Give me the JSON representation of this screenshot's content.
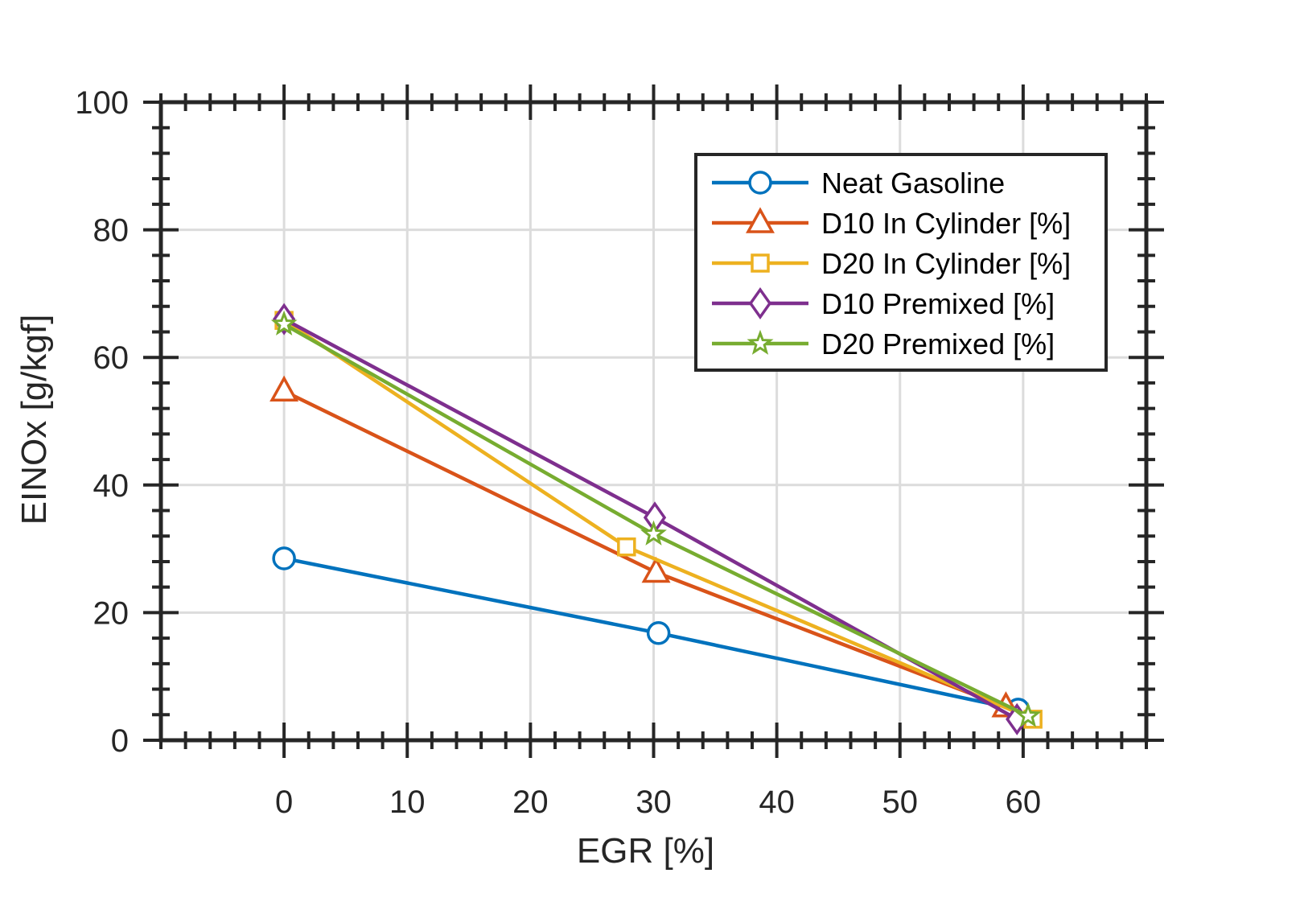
{
  "chart_data": {
    "type": "line",
    "xlabel": "EGR [%]",
    "ylabel": "EINOx [g/kgf]",
    "xlim": [
      -10,
      70
    ],
    "ylim": [
      0,
      100
    ],
    "xticks": [
      0,
      10,
      20,
      30,
      40,
      50,
      60
    ],
    "yticks": [
      0,
      20,
      40,
      60,
      80,
      100
    ],
    "grid": true,
    "legend_position": "top-right",
    "series": [
      {
        "name": "Neat Gasoline",
        "color": "#0072BD",
        "marker": "circle",
        "x": [
          0,
          30.4,
          59.6
        ],
        "y": [
          28.5,
          16.8,
          4.8
        ]
      },
      {
        "name": "D10 In Cylinder [%]",
        "color": "#D95319",
        "marker": "triangle",
        "x": [
          0,
          30.2,
          58.6
        ],
        "y": [
          54.7,
          26.3,
          5.2
        ]
      },
      {
        "name": "D20 In Cylinder [%]",
        "color": "#EDB120",
        "marker": "square",
        "x": [
          0,
          27.8,
          60.8
        ],
        "y": [
          65.8,
          30.3,
          3.3
        ]
      },
      {
        "name": "D10 Premixed [%]",
        "color": "#7E2F8E",
        "marker": "diamond",
        "x": [
          0,
          30.1,
          59.5
        ],
        "y": [
          66.0,
          34.9,
          3.3
        ]
      },
      {
        "name": "D20 Premixed [%]",
        "color": "#77AC30",
        "marker": "star",
        "x": [
          0,
          30.0,
          60.4
        ],
        "y": [
          65.2,
          32.3,
          3.8
        ]
      }
    ]
  }
}
